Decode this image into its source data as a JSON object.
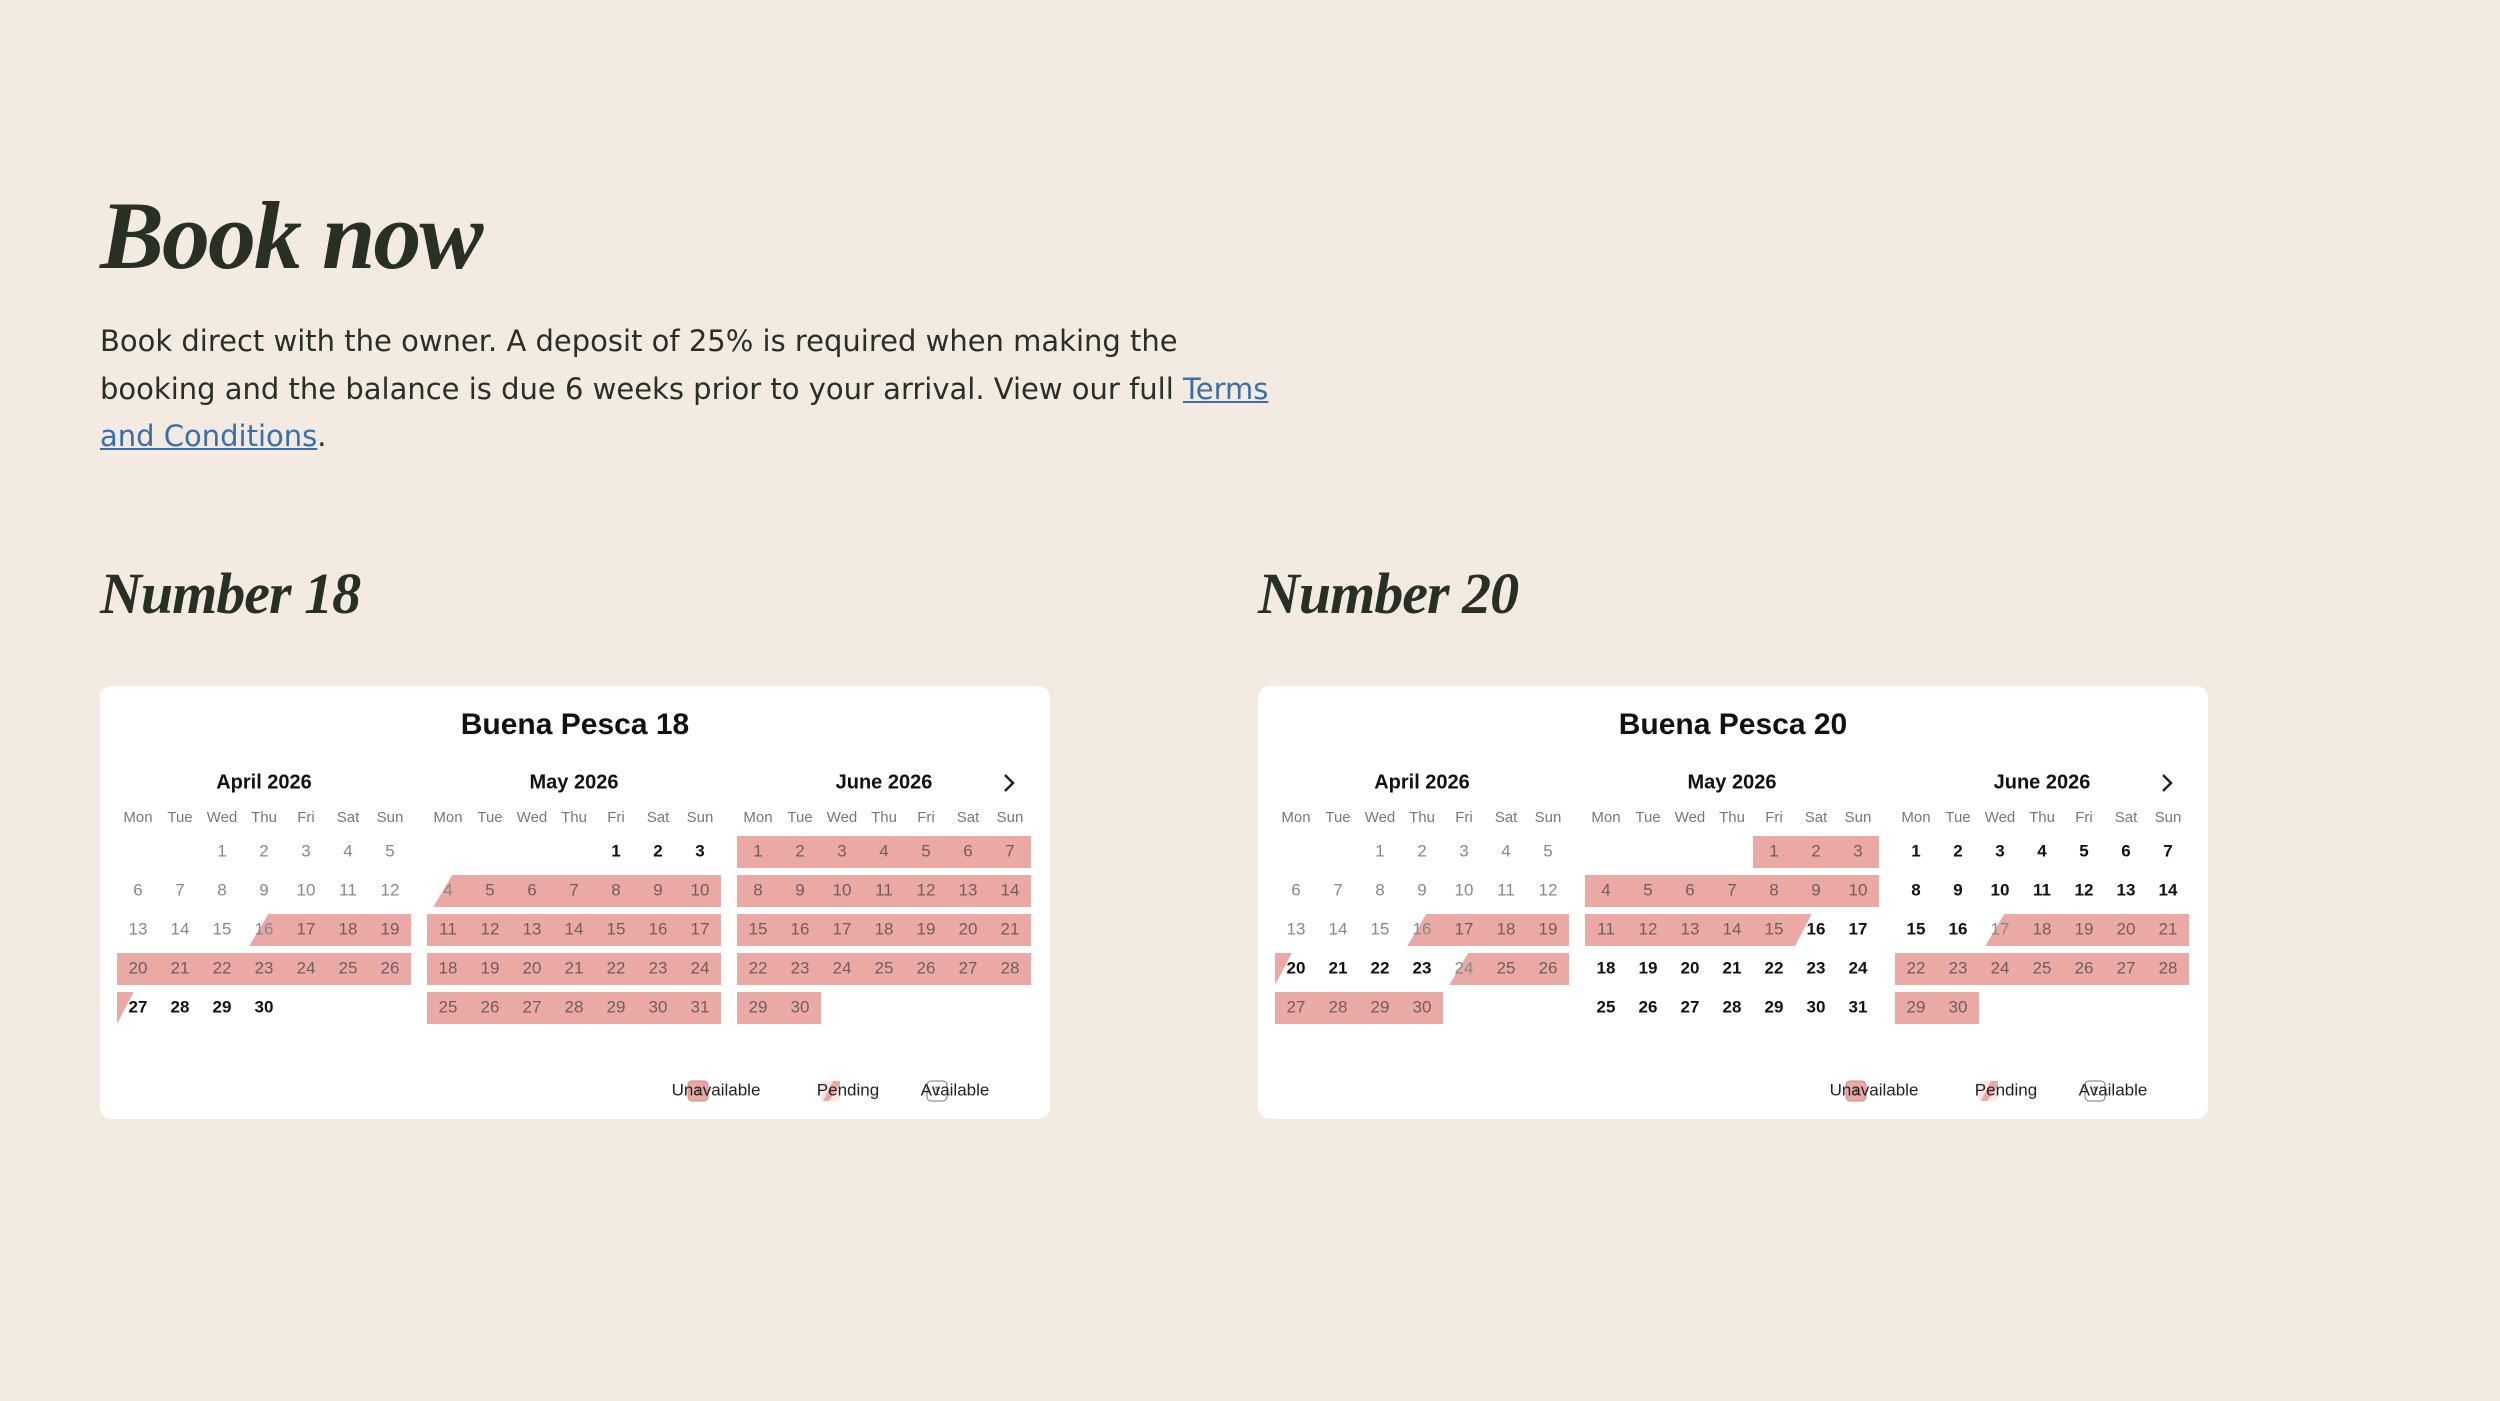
{
  "header": {
    "title": "Book now",
    "text_before": "Book direct with the owner. A deposit of 25% is required when making the booking and the balance is due 6 weeks prior to your arrival. View our full ",
    "link": "Terms and Conditions",
    "text_after": "."
  },
  "weekdays": [
    "Mon",
    "Tue",
    "Wed",
    "Thu",
    "Fri",
    "Sat",
    "Sun"
  ],
  "legend": [
    {
      "label": "Unavailable",
      "sample": "1",
      "status": "booked"
    },
    {
      "label": "Pending",
      "status": "in"
    },
    {
      "label": "Available",
      "sample": "1",
      "status": "free"
    }
  ],
  "properties": [
    {
      "heading": "Number 18",
      "calendar": {
        "title": "Buena Pesca 18",
        "months": [
          {
            "name": "April 2026",
            "days": [
              1,
              2,
              3,
              4,
              5,
              6,
              7,
              8,
              9,
              10,
              11,
              12,
              13,
              14,
              15,
              16,
              17,
              18,
              19,
              20,
              21,
              22,
              23,
              24,
              25,
              26,
              27,
              28,
              29,
              30
            ],
            "status": [
              "past",
              "past",
              "past",
              "past",
              "past",
              "past",
              "past",
              "past",
              "past",
              "past",
              "past",
              "past",
              "past",
              "past",
              "past",
              "in",
              "booked",
              "booked",
              "booked",
              "booked",
              "booked",
              "booked",
              "booked",
              "booked",
              "booked",
              "booked",
              "out",
              "free",
              "free",
              "free"
            ]
          },
          {
            "name": "May 2026",
            "days": [
              1,
              2,
              3,
              4,
              5,
              6,
              7,
              8,
              9,
              10,
              11,
              12,
              13,
              14,
              15,
              16,
              17,
              18,
              19,
              20,
              21,
              22,
              23,
              24,
              25,
              26,
              27,
              28,
              29,
              30,
              31
            ],
            "status": [
              "free",
              "free",
              "free",
              "in",
              "booked",
              "booked",
              "booked",
              "booked",
              "booked",
              "booked",
              "booked",
              "booked",
              "booked",
              "booked",
              "booked",
              "booked",
              "booked",
              "booked",
              "booked",
              "booked",
              "booked",
              "booked",
              "booked",
              "booked",
              "booked",
              "booked",
              "booked",
              "booked",
              "booked",
              "booked",
              "booked"
            ]
          },
          {
            "name": "June 2026",
            "days": [
              1,
              2,
              3,
              4,
              5,
              6,
              7,
              8,
              9,
              10,
              11,
              12,
              13,
              14,
              15,
              16,
              17,
              18,
              19,
              20,
              21,
              22,
              23,
              24,
              25,
              26,
              27,
              28,
              29,
              30
            ],
            "status": [
              "booked",
              "booked",
              "booked",
              "booked",
              "booked",
              "booked",
              "booked",
              "booked",
              "booked",
              "booked",
              "booked",
              "booked",
              "booked",
              "booked",
              "booked",
              "booked",
              "booked",
              "booked",
              "booked",
              "booked",
              "booked",
              "booked",
              "booked",
              "booked",
              "booked",
              "booked",
              "booked",
              "booked",
              "booked",
              "booked"
            ]
          }
        ]
      }
    },
    {
      "heading": "Number 20",
      "calendar": {
        "title": "Buena Pesca 20",
        "months": [
          {
            "name": "April 2026",
            "days": [
              1,
              2,
              3,
              4,
              5,
              6,
              7,
              8,
              9,
              10,
              11,
              12,
              13,
              14,
              15,
              16,
              17,
              18,
              19,
              20,
              21,
              22,
              23,
              24,
              25,
              26,
              27,
              28,
              29,
              30
            ],
            "status": [
              "past",
              "past",
              "past",
              "past",
              "past",
              "past",
              "past",
              "past",
              "past",
              "past",
              "past",
              "past",
              "past",
              "past",
              "past",
              "in",
              "booked",
              "booked",
              "booked",
              "out",
              "free",
              "free",
              "free",
              "in",
              "booked",
              "booked",
              "booked",
              "booked",
              "booked",
              "booked"
            ]
          },
          {
            "name": "May 2026",
            "days": [
              1,
              2,
              3,
              4,
              5,
              6,
              7,
              8,
              9,
              10,
              11,
              12,
              13,
              14,
              15,
              16,
              17,
              18,
              19,
              20,
              21,
              22,
              23,
              24,
              25,
              26,
              27,
              28,
              29,
              30,
              31
            ],
            "status": [
              "booked",
              "booked",
              "booked",
              "booked",
              "booked",
              "booked",
              "booked",
              "booked",
              "booked",
              "booked",
              "booked",
              "booked",
              "booked",
              "booked",
              "booked",
              "out",
              "free",
              "free",
              "free",
              "free",
              "free",
              "free",
              "free",
              "free",
              "free",
              "free",
              "free",
              "free",
              "free",
              "free",
              "free"
            ]
          },
          {
            "name": "June 2026",
            "days": [
              1,
              2,
              3,
              4,
              5,
              6,
              7,
              8,
              9,
              10,
              11,
              12,
              13,
              14,
              15,
              16,
              17,
              18,
              19,
              20,
              21,
              22,
              23,
              24,
              25,
              26,
              27,
              28,
              29,
              30
            ],
            "status": [
              "free",
              "free",
              "free",
              "free",
              "free",
              "free",
              "free",
              "free",
              "free",
              "free",
              "free",
              "free",
              "free",
              "free",
              "free",
              "free",
              "in",
              "booked",
              "booked",
              "booked",
              "booked",
              "booked",
              "booked",
              "booked",
              "booked",
              "booked",
              "booked",
              "booked",
              "booked",
              "booked"
            ]
          }
        ]
      }
    }
  ]
}
